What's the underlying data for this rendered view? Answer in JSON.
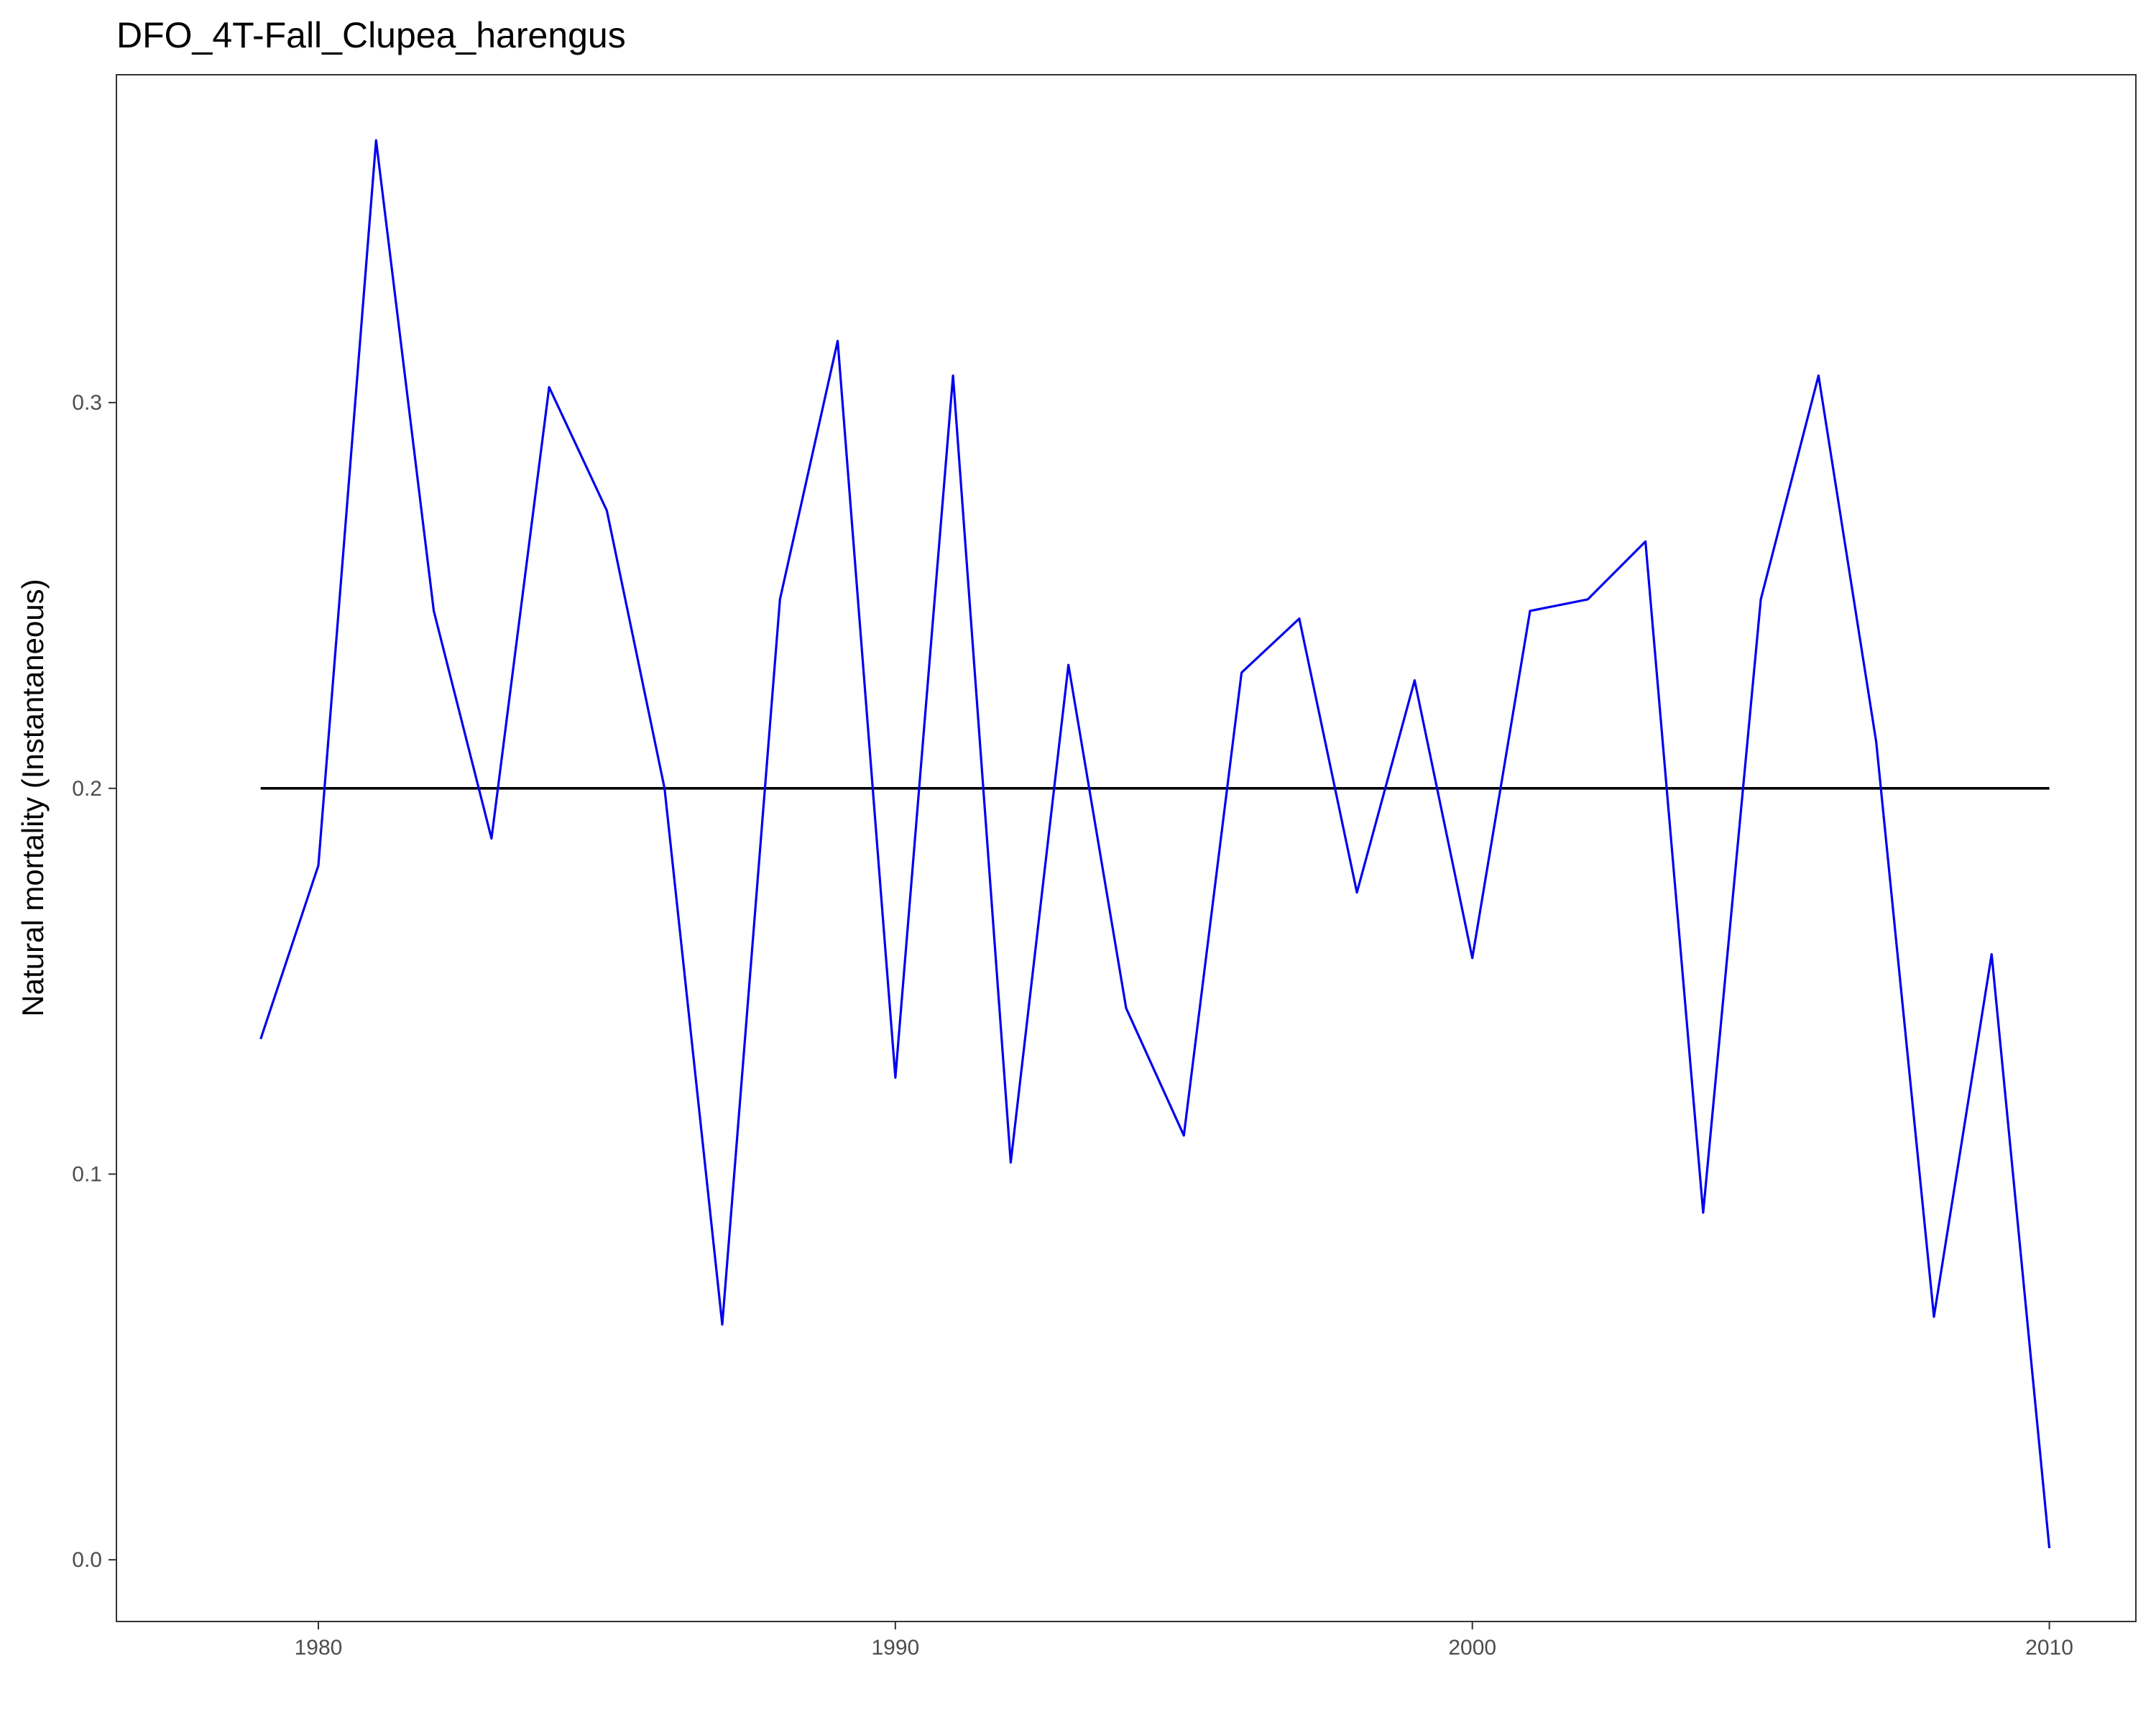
{
  "chart_data": {
    "type": "line",
    "title": "DFO_4T-Fall_Clupea_harengus",
    "xlabel": "",
    "ylabel": "Natural mortality (Instantaneous)",
    "xlim": [
      1976.5,
      2011.5
    ],
    "ylim": [
      -0.016,
      0.385
    ],
    "x_ticks": [
      1980,
      1990,
      2000,
      2010
    ],
    "y_ticks": [
      0.0,
      0.1,
      0.2,
      0.3
    ],
    "x_tick_labels": [
      "1980",
      "1990",
      "2000",
      "2010"
    ],
    "y_tick_labels": [
      "0.0",
      "0.1",
      "0.2",
      "0.3"
    ],
    "grid": false,
    "legend": "none",
    "series": [
      {
        "color": "#0000ee",
        "x": [
          1979,
          1980,
          1981,
          1982,
          1983,
          1984,
          1985,
          1986,
          1987,
          1988,
          1989,
          1990,
          1991,
          1992,
          1993,
          1994,
          1995,
          1996,
          1997,
          1998,
          1999,
          2000,
          2001,
          2002,
          2003,
          2004,
          2005,
          2006,
          2007,
          2008,
          2009,
          2010
        ],
        "y": [
          0.135,
          0.18,
          0.368,
          0.246,
          0.187,
          0.304,
          0.272,
          0.2,
          0.061,
          0.249,
          0.316,
          0.125,
          0.307,
          0.103,
          0.232,
          0.143,
          0.11,
          0.23,
          0.244,
          0.173,
          0.228,
          0.156,
          0.246,
          0.249,
          0.264,
          0.09,
          0.249,
          0.307,
          0.212,
          0.063,
          0.157,
          0.003
        ]
      },
      {
        "color": "#000000",
        "x": [
          1979,
          2010
        ],
        "y": [
          0.2,
          0.2
        ]
      }
    ]
  }
}
